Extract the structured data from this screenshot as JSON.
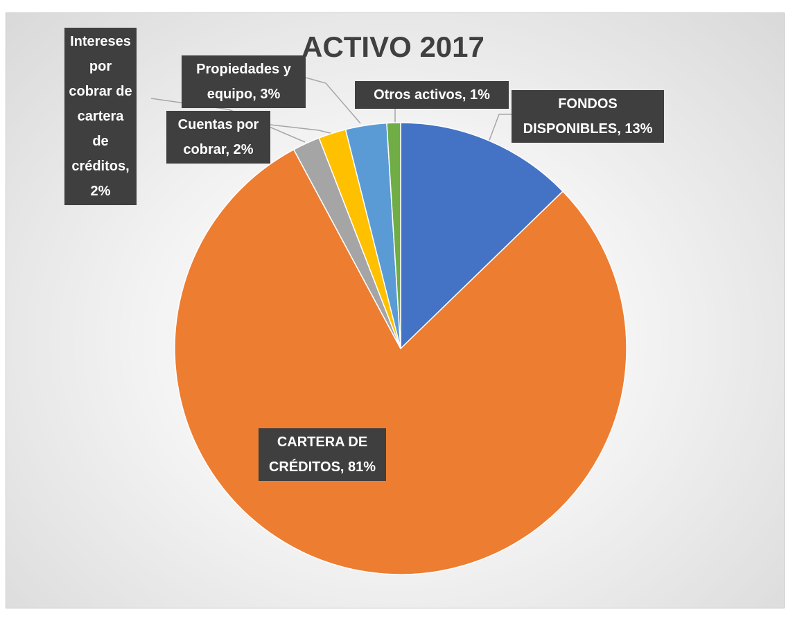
{
  "chart_data": {
    "type": "pie",
    "title": "ACTIVO 2017",
    "values": [
      13,
      81,
      2,
      2,
      3,
      1
    ],
    "value_labels": [
      "FONDOS DISPONIBLES, 13%",
      "CARTERA DE CRÉDITOS, 81%",
      "Intereses por cobrar de cartera de créditos, 2%",
      "Cuentas por cobrar, 2%",
      "Propiedades y equipo, 3%",
      "Otros activos, 1%"
    ],
    "colors": [
      "#4472c4",
      "#ed7d31",
      "#a5a5a5",
      "#ffc000",
      "#5b9bd5",
      "#70ad47"
    ]
  }
}
